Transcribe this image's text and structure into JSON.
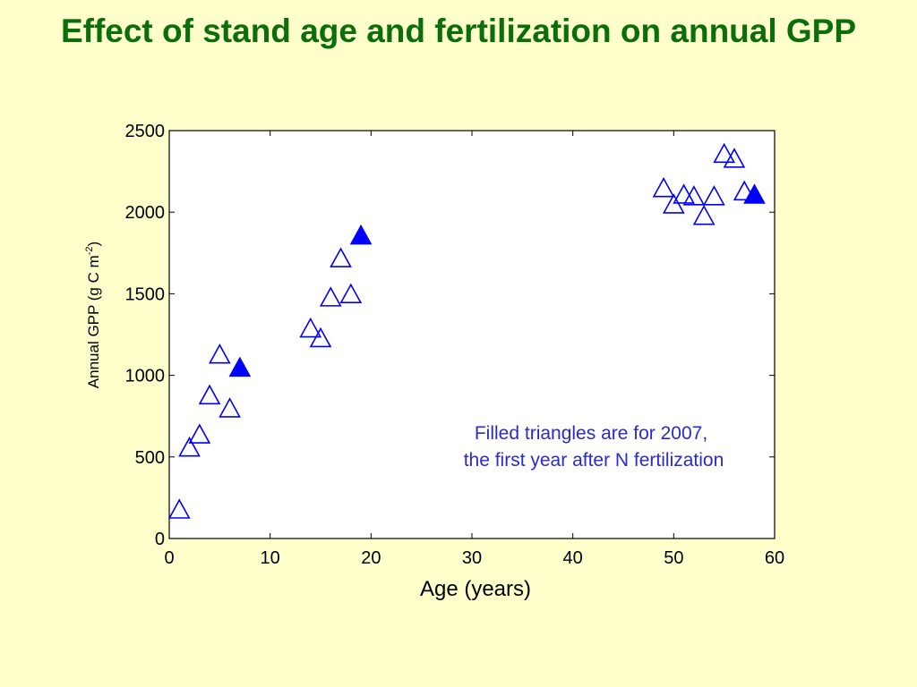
{
  "slide": {
    "title": "Effect of stand age and fertilization on annual GPP"
  },
  "chart_data": {
    "type": "scatter",
    "title": "",
    "xlabel": "Age (years)",
    "ylabel_main": "Annual GPP (g C m",
    "ylabel_sup": "-2",
    "ylabel_end": ")",
    "xlim": [
      0,
      60
    ],
    "ylim": [
      0,
      2500
    ],
    "xticks": [
      0,
      10,
      20,
      30,
      40,
      50,
      60
    ],
    "yticks": [
      0,
      500,
      1000,
      1500,
      2000,
      2500
    ],
    "grid": false,
    "marker_color": "#0000ff",
    "annotation": [
      "Filled triangles are for 2007,",
      "the first year after N fertilization"
    ],
    "series": [
      {
        "marker": "open-triangle",
        "points": [
          [
            1,
            170
          ],
          [
            2,
            550
          ],
          [
            3,
            630
          ],
          [
            4,
            870
          ],
          [
            5,
            1120
          ],
          [
            6,
            790
          ],
          [
            14,
            1280
          ],
          [
            15,
            1220
          ],
          [
            16,
            1470
          ],
          [
            17,
            1710
          ],
          [
            18,
            1490
          ],
          [
            49,
            2140
          ],
          [
            50,
            2040
          ],
          [
            51,
            2100
          ],
          [
            52,
            2090
          ],
          [
            53,
            1970
          ],
          [
            54,
            2090
          ],
          [
            55,
            2350
          ],
          [
            56,
            2320
          ],
          [
            57,
            2120
          ]
        ]
      },
      {
        "marker": "filled-triangle",
        "points": [
          [
            7,
            1040
          ],
          [
            19,
            1850
          ],
          [
            58,
            2100
          ]
        ]
      }
    ]
  }
}
